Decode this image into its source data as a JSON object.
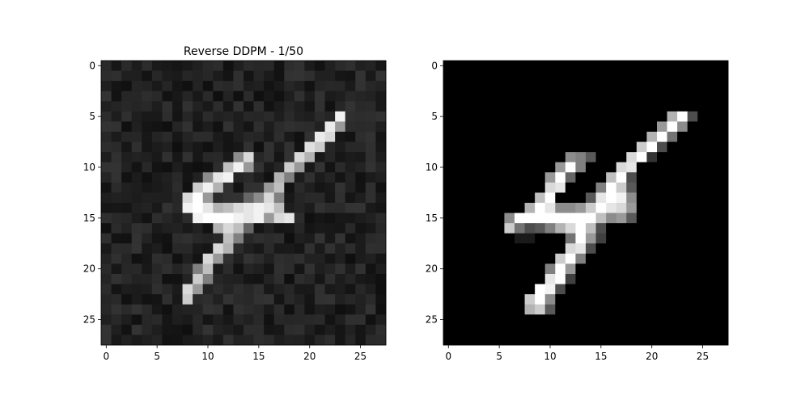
{
  "chart_data": [
    {
      "type": "heatmap",
      "title": "Reverse DDPM - 1/50",
      "colormap": "gray",
      "background_level": 0.13,
      "noise_amplitude": 0.07,
      "grid": false,
      "xlim": [
        -0.5,
        27.5
      ],
      "ylim": [
        27.5,
        -0.5
      ],
      "xticks": [
        0,
        5,
        10,
        15,
        20,
        25
      ],
      "yticks": [
        0,
        5,
        10,
        15,
        20,
        25
      ],
      "xtick_labels": [
        "0",
        "5",
        "10",
        "15",
        "20",
        "25"
      ],
      "ytick_labels": [
        "0",
        "5",
        "10",
        "15",
        "20",
        "25"
      ],
      "bright_pixels": [
        [
          5,
          23,
          0.95
        ],
        [
          6,
          22,
          0.92
        ],
        [
          6,
          23,
          0.6
        ],
        [
          7,
          21,
          0.92
        ],
        [
          7,
          22,
          0.85
        ],
        [
          8,
          20,
          0.88
        ],
        [
          8,
          21,
          0.8
        ],
        [
          9,
          19,
          0.85
        ],
        [
          9,
          20,
          0.7
        ],
        [
          10,
          18,
          0.8
        ],
        [
          10,
          19,
          0.6
        ],
        [
          9,
          13,
          0.55
        ],
        [
          9,
          14,
          0.85
        ],
        [
          10,
          12,
          0.75
        ],
        [
          10,
          13,
          0.95
        ],
        [
          10,
          14,
          0.6
        ],
        [
          11,
          10,
          0.55
        ],
        [
          11,
          11,
          0.9
        ],
        [
          11,
          12,
          0.95
        ],
        [
          11,
          17,
          0.7
        ],
        [
          11,
          18,
          0.5
        ],
        [
          12,
          9,
          0.8
        ],
        [
          12,
          10,
          0.95
        ],
        [
          12,
          11,
          0.7
        ],
        [
          12,
          16,
          0.6
        ],
        [
          12,
          17,
          0.75
        ],
        [
          13,
          8,
          0.85
        ],
        [
          13,
          9,
          1.0
        ],
        [
          13,
          10,
          0.6
        ],
        [
          13,
          14,
          0.4
        ],
        [
          13,
          15,
          0.55
        ],
        [
          13,
          16,
          0.85
        ],
        [
          13,
          17,
          0.5
        ],
        [
          14,
          8,
          0.95
        ],
        [
          14,
          9,
          1.0
        ],
        [
          14,
          10,
          0.9
        ],
        [
          14,
          11,
          0.7
        ],
        [
          14,
          12,
          0.75
        ],
        [
          14,
          13,
          0.85
        ],
        [
          14,
          14,
          0.9
        ],
        [
          14,
          15,
          0.95
        ],
        [
          14,
          16,
          0.9
        ],
        [
          14,
          17,
          0.75
        ],
        [
          15,
          9,
          0.95
        ],
        [
          15,
          10,
          1.0
        ],
        [
          15,
          11,
          1.0
        ],
        [
          15,
          12,
          1.0
        ],
        [
          15,
          13,
          0.95
        ],
        [
          15,
          14,
          0.9
        ],
        [
          15,
          15,
          0.95
        ],
        [
          15,
          16,
          0.6
        ],
        [
          15,
          17,
          0.85
        ],
        [
          15,
          18,
          0.9
        ],
        [
          16,
          11,
          0.7
        ],
        [
          16,
          12,
          0.85
        ],
        [
          16,
          13,
          0.75
        ],
        [
          16,
          14,
          0.4
        ],
        [
          17,
          12,
          0.75
        ],
        [
          17,
          13,
          0.5
        ],
        [
          18,
          11,
          0.85
        ],
        [
          18,
          12,
          0.7
        ],
        [
          19,
          10,
          0.85
        ],
        [
          19,
          11,
          0.6
        ],
        [
          20,
          10,
          0.75
        ],
        [
          20,
          9,
          0.5
        ],
        [
          21,
          9,
          0.8
        ],
        [
          21,
          10,
          0.5
        ],
        [
          22,
          8,
          0.85
        ],
        [
          22,
          9,
          0.6
        ],
        [
          23,
          8,
          0.8
        ]
      ]
    },
    {
      "type": "heatmap",
      "title": "",
      "colormap": "gray",
      "background_level": 0.0,
      "noise_amplitude": 0.0,
      "grid": false,
      "xlim": [
        -0.5,
        27.5
      ],
      "ylim": [
        27.5,
        -0.5
      ],
      "xticks": [
        0,
        5,
        10,
        15,
        20,
        25
      ],
      "yticks": [
        0,
        5,
        10,
        15,
        20,
        25
      ],
      "xtick_labels": [
        "0",
        "5",
        "10",
        "15",
        "20",
        "25"
      ],
      "ytick_labels": [
        "0",
        "5",
        "10",
        "15",
        "20",
        "25"
      ],
      "bright_pixels": [
        [
          5,
          22,
          0.7
        ],
        [
          5,
          23,
          1.0
        ],
        [
          5,
          24,
          0.3
        ],
        [
          6,
          21,
          0.6
        ],
        [
          6,
          22,
          1.0
        ],
        [
          6,
          23,
          0.55
        ],
        [
          7,
          20,
          0.7
        ],
        [
          7,
          21,
          1.0
        ],
        [
          7,
          22,
          0.45
        ],
        [
          8,
          19,
          0.8
        ],
        [
          8,
          20,
          1.0
        ],
        [
          8,
          21,
          0.3
        ],
        [
          9,
          18,
          0.85
        ],
        [
          9,
          19,
          1.0
        ],
        [
          9,
          20,
          0.2
        ],
        [
          9,
          12,
          0.55
        ],
        [
          9,
          13,
          0.5
        ],
        [
          9,
          14,
          0.35
        ],
        [
          10,
          11,
          0.6
        ],
        [
          10,
          12,
          1.0
        ],
        [
          10,
          13,
          0.5
        ],
        [
          10,
          17,
          0.85
        ],
        [
          10,
          18,
          0.9
        ],
        [
          11,
          10,
          0.6
        ],
        [
          11,
          11,
          1.0
        ],
        [
          11,
          12,
          0.4
        ],
        [
          11,
          16,
          0.75
        ],
        [
          11,
          17,
          1.0
        ],
        [
          11,
          18,
          0.3
        ],
        [
          12,
          10,
          0.85
        ],
        [
          12,
          11,
          0.9
        ],
        [
          12,
          15,
          0.5
        ],
        [
          12,
          16,
          1.0
        ],
        [
          12,
          17,
          0.8
        ],
        [
          12,
          18,
          0.35
        ],
        [
          13,
          9,
          0.75
        ],
        [
          13,
          10,
          1.0
        ],
        [
          13,
          14,
          0.35
        ],
        [
          13,
          15,
          0.9
        ],
        [
          13,
          16,
          1.0
        ],
        [
          13,
          17,
          0.95
        ],
        [
          13,
          18,
          0.55
        ],
        [
          14,
          8,
          0.7
        ],
        [
          14,
          9,
          1.0
        ],
        [
          14,
          10,
          0.9
        ],
        [
          14,
          11,
          0.55
        ],
        [
          14,
          12,
          0.55
        ],
        [
          14,
          13,
          0.6
        ],
        [
          14,
          14,
          0.8
        ],
        [
          14,
          15,
          1.0
        ],
        [
          14,
          16,
          0.9
        ],
        [
          14,
          17,
          0.85
        ],
        [
          14,
          18,
          0.6
        ],
        [
          15,
          6,
          0.55
        ],
        [
          15,
          7,
          1.0
        ],
        [
          15,
          8,
          1.0
        ],
        [
          15,
          9,
          1.0
        ],
        [
          15,
          10,
          1.0
        ],
        [
          15,
          11,
          1.0
        ],
        [
          15,
          12,
          1.0
        ],
        [
          15,
          13,
          1.0
        ],
        [
          15,
          14,
          1.0
        ],
        [
          15,
          15,
          0.75
        ],
        [
          15,
          16,
          0.55
        ],
        [
          15,
          17,
          0.6
        ],
        [
          15,
          18,
          0.35
        ],
        [
          16,
          6,
          0.8
        ],
        [
          16,
          7,
          0.45
        ],
        [
          16,
          8,
          0.3
        ],
        [
          16,
          9,
          0.35
        ],
        [
          16,
          10,
          0.5
        ],
        [
          16,
          11,
          0.7
        ],
        [
          16,
          12,
          0.85
        ],
        [
          16,
          13,
          1.0
        ],
        [
          16,
          14,
          0.75
        ],
        [
          16,
          15,
          0.3
        ],
        [
          17,
          7,
          0.1
        ],
        [
          17,
          8,
          0.1
        ],
        [
          17,
          12,
          0.45
        ],
        [
          17,
          13,
          1.0
        ],
        [
          17,
          14,
          0.6
        ],
        [
          17,
          15,
          0.25
        ],
        [
          18,
          12,
          0.85
        ],
        [
          18,
          13,
          0.9
        ],
        [
          18,
          14,
          0.3
        ],
        [
          19,
          11,
          0.8
        ],
        [
          19,
          12,
          1.0
        ],
        [
          19,
          13,
          0.5
        ],
        [
          20,
          10,
          0.5
        ],
        [
          20,
          11,
          1.0
        ],
        [
          20,
          12,
          0.6
        ],
        [
          21,
          10,
          0.9
        ],
        [
          21,
          11,
          1.0
        ],
        [
          21,
          12,
          0.25
        ],
        [
          22,
          9,
          1.0
        ],
        [
          22,
          10,
          0.95
        ],
        [
          22,
          11,
          0.3
        ],
        [
          23,
          8,
          0.8
        ],
        [
          23,
          9,
          1.0
        ],
        [
          23,
          10,
          0.55
        ],
        [
          24,
          8,
          0.7
        ],
        [
          24,
          9,
          0.8
        ],
        [
          24,
          10,
          0.35
        ]
      ]
    }
  ]
}
